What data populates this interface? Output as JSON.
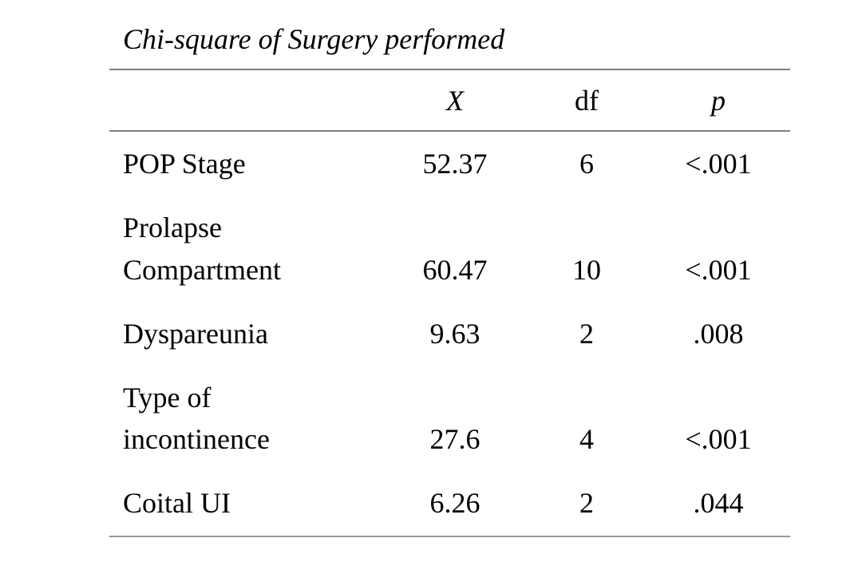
{
  "table": {
    "title": "Chi-square of Surgery performed",
    "columns": [
      {
        "key": "label",
        "label": ""
      },
      {
        "key": "x",
        "label": "X",
        "italic": true
      },
      {
        "key": "df",
        "label": "df",
        "italic": false
      },
      {
        "key": "p",
        "label": "p",
        "italic": true
      }
    ],
    "rows": [
      {
        "label": "POP Stage",
        "x": "52.37",
        "df": "6",
        "p": "<.001"
      },
      {
        "label": "Prolapse\nCompartment",
        "x": "60.47",
        "df": "10",
        "p": "<.001"
      },
      {
        "label": "Dyspareunia",
        "x": "9.63",
        "df": "2",
        "p": ".008"
      },
      {
        "label": "Type of\nincontinence",
        "x": "27.6",
        "df": "4",
        "p": "<.001"
      },
      {
        "label": "Coital UI",
        "x": "6.26",
        "df": "2",
        "p": ".044"
      }
    ]
  },
  "colors": {
    "background": "#ffffff",
    "text": "#000000",
    "rule": "#7f7f7f",
    "bottom_rule": "#979797"
  }
}
